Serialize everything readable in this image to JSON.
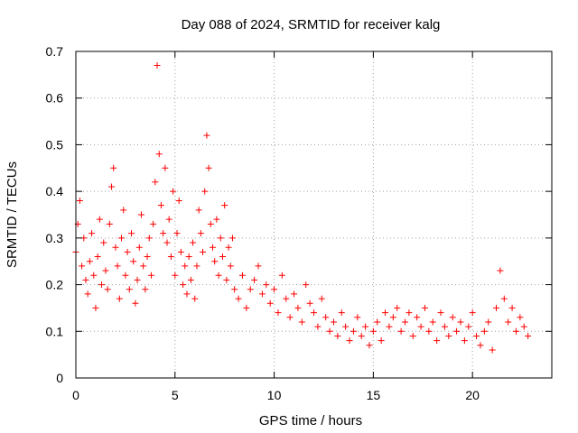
{
  "chart_data": {
    "type": "scatter",
    "title": "Day 088 of 2024, SRMTID for receiver kalg",
    "xlabel": "GPS time / hours",
    "ylabel": "SRMTID / TECUs",
    "xlim": [
      0,
      24
    ],
    "ylim": [
      0,
      0.7
    ],
    "xticks": [
      0,
      5,
      10,
      15,
      20
    ],
    "yticks": [
      0,
      0.1,
      0.2,
      0.3,
      0.4,
      0.5,
      0.6,
      0.7
    ],
    "xtick_labels": [
      "0",
      "5",
      "10",
      "15",
      "20"
    ],
    "ytick_labels": [
      "0",
      "0.1",
      "0.2",
      "0.3",
      "0.4",
      "0.5",
      "0.6",
      "0.7"
    ],
    "grid": true,
    "marker": "+",
    "color": "#ff0000",
    "series": [
      {
        "name": "SRMTID",
        "x": [
          0.0,
          0.1,
          0.2,
          0.3,
          0.4,
          0.5,
          0.6,
          0.7,
          0.8,
          0.9,
          1.0,
          1.1,
          1.2,
          1.3,
          1.4,
          1.5,
          1.6,
          1.7,
          1.8,
          1.9,
          2.0,
          2.1,
          2.2,
          2.3,
          2.4,
          2.5,
          2.6,
          2.7,
          2.8,
          2.9,
          3.0,
          3.1,
          3.2,
          3.3,
          3.4,
          3.5,
          3.6,
          3.7,
          3.8,
          3.9,
          4.0,
          4.1,
          4.2,
          4.3,
          4.4,
          4.5,
          4.6,
          4.7,
          4.8,
          4.9,
          5.0,
          5.1,
          5.2,
          5.3,
          5.4,
          5.5,
          5.6,
          5.7,
          5.8,
          5.9,
          6.0,
          6.1,
          6.2,
          6.3,
          6.4,
          6.5,
          6.6,
          6.7,
          6.8,
          6.9,
          7.0,
          7.1,
          7.2,
          7.3,
          7.4,
          7.5,
          7.6,
          7.7,
          7.8,
          7.9,
          8.0,
          8.2,
          8.4,
          8.6,
          8.8,
          9.0,
          9.2,
          9.4,
          9.6,
          9.8,
          10.0,
          10.2,
          10.4,
          10.6,
          10.8,
          11.0,
          11.2,
          11.4,
          11.6,
          11.8,
          12.0,
          12.2,
          12.4,
          12.6,
          12.8,
          13.0,
          13.2,
          13.4,
          13.6,
          13.8,
          14.0,
          14.2,
          14.4,
          14.6,
          14.8,
          15.0,
          15.2,
          15.4,
          15.6,
          15.8,
          16.0,
          16.2,
          16.4,
          16.6,
          16.8,
          17.0,
          17.2,
          17.4,
          17.6,
          17.8,
          18.0,
          18.2,
          18.4,
          18.6,
          18.8,
          19.0,
          19.2,
          19.4,
          19.6,
          19.8,
          20.0,
          20.2,
          20.4,
          20.6,
          20.8,
          21.0,
          21.2,
          21.4,
          21.6,
          21.8,
          22.0,
          22.2,
          22.4,
          22.6,
          22.8
        ],
        "y": [
          0.27,
          0.33,
          0.38,
          0.24,
          0.3,
          0.21,
          0.18,
          0.25,
          0.31,
          0.22,
          0.15,
          0.26,
          0.34,
          0.2,
          0.29,
          0.23,
          0.19,
          0.33,
          0.41,
          0.45,
          0.28,
          0.24,
          0.17,
          0.3,
          0.36,
          0.22,
          0.27,
          0.19,
          0.31,
          0.25,
          0.16,
          0.21,
          0.28,
          0.35,
          0.24,
          0.19,
          0.26,
          0.3,
          0.22,
          0.33,
          0.42,
          0.67,
          0.48,
          0.37,
          0.31,
          0.45,
          0.29,
          0.34,
          0.26,
          0.4,
          0.22,
          0.31,
          0.38,
          0.27,
          0.2,
          0.24,
          0.18,
          0.26,
          0.21,
          0.29,
          0.17,
          0.24,
          0.36,
          0.31,
          0.27,
          0.4,
          0.52,
          0.45,
          0.33,
          0.28,
          0.25,
          0.34,
          0.22,
          0.3,
          0.26,
          0.37,
          0.21,
          0.28,
          0.24,
          0.3,
          0.19,
          0.17,
          0.22,
          0.15,
          0.19,
          0.21,
          0.24,
          0.18,
          0.2,
          0.16,
          0.19,
          0.14,
          0.22,
          0.17,
          0.13,
          0.18,
          0.15,
          0.12,
          0.2,
          0.16,
          0.14,
          0.11,
          0.17,
          0.13,
          0.1,
          0.12,
          0.09,
          0.14,
          0.11,
          0.08,
          0.1,
          0.13,
          0.09,
          0.11,
          0.07,
          0.1,
          0.12,
          0.08,
          0.14,
          0.11,
          0.13,
          0.15,
          0.1,
          0.12,
          0.14,
          0.09,
          0.13,
          0.11,
          0.15,
          0.1,
          0.12,
          0.08,
          0.14,
          0.11,
          0.09,
          0.13,
          0.1,
          0.12,
          0.08,
          0.11,
          0.14,
          0.09,
          0.07,
          0.1,
          0.12,
          0.06,
          0.15,
          0.23,
          0.17,
          0.12,
          0.15,
          0.1,
          0.13,
          0.11,
          0.09
        ]
      }
    ]
  }
}
